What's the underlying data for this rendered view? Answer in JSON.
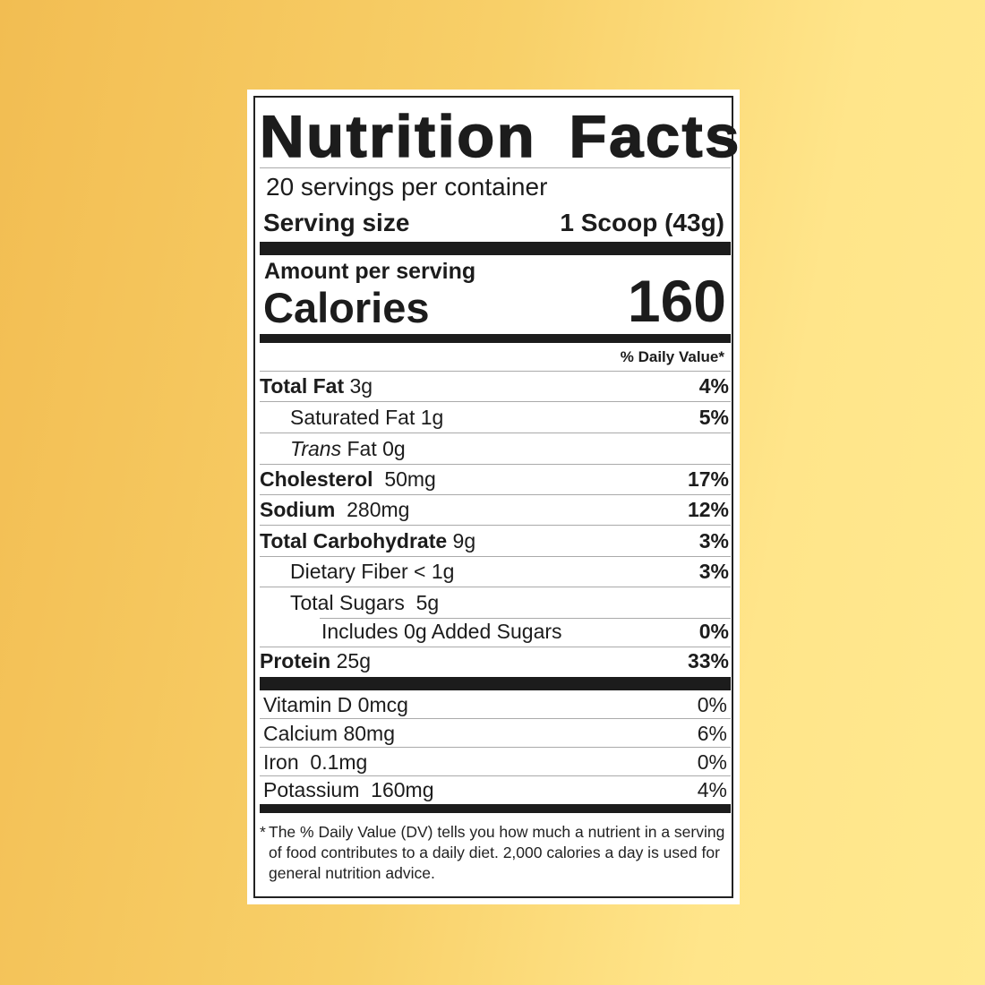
{
  "title": "Nutrition Facts",
  "servings_per_container": "20 servings per container",
  "serving_size_label": "Serving size",
  "serving_size_value": "1 Scoop (43g)",
  "amount_per_serving": "Amount per serving",
  "calories_label": "Calories",
  "calories_value": "160",
  "dv_header": "% Daily Value*",
  "nutrients": [
    {
      "name": "Total Fat",
      "amount": "3g",
      "dv": "4%"
    },
    {
      "name": "Saturated Fat",
      "amount": "1g",
      "dv": "5%"
    },
    {
      "name": "Trans",
      "name_suffix": "Fat",
      "amount": "0g",
      "dv": ""
    },
    {
      "name": "Cholesterol",
      "amount": "50mg",
      "dv": "17%"
    },
    {
      "name": "Sodium",
      "amount": "280mg",
      "dv": "12%"
    },
    {
      "name": "Total Carbohydrate",
      "amount": "9g",
      "dv": "3%"
    },
    {
      "name": "Dietary Fiber",
      "amount": "< 1g",
      "dv": "3%"
    },
    {
      "name": "Total Sugars",
      "amount": "5g",
      "dv": ""
    },
    {
      "name": "Includes 0g Added Sugars",
      "amount": "",
      "dv": "0%"
    },
    {
      "name": "Protein",
      "amount": "25g",
      "dv": "33%"
    }
  ],
  "vitamins": [
    {
      "name": "Vitamin D",
      "amount": "0mcg",
      "dv": "0%"
    },
    {
      "name": "Calcium",
      "amount": "80mg",
      "dv": "6%"
    },
    {
      "name": "Iron",
      "amount": "0.1mg",
      "dv": "0%"
    },
    {
      "name": "Potassium",
      "amount": "160mg",
      "dv": "4%"
    }
  ],
  "footnote_marker": "*",
  "footnote": "The % Daily Value (DV) tells you how much a nutrient in a serving of food contributes to a daily diet. 2,000 calories a day is used for general nutrition advice."
}
